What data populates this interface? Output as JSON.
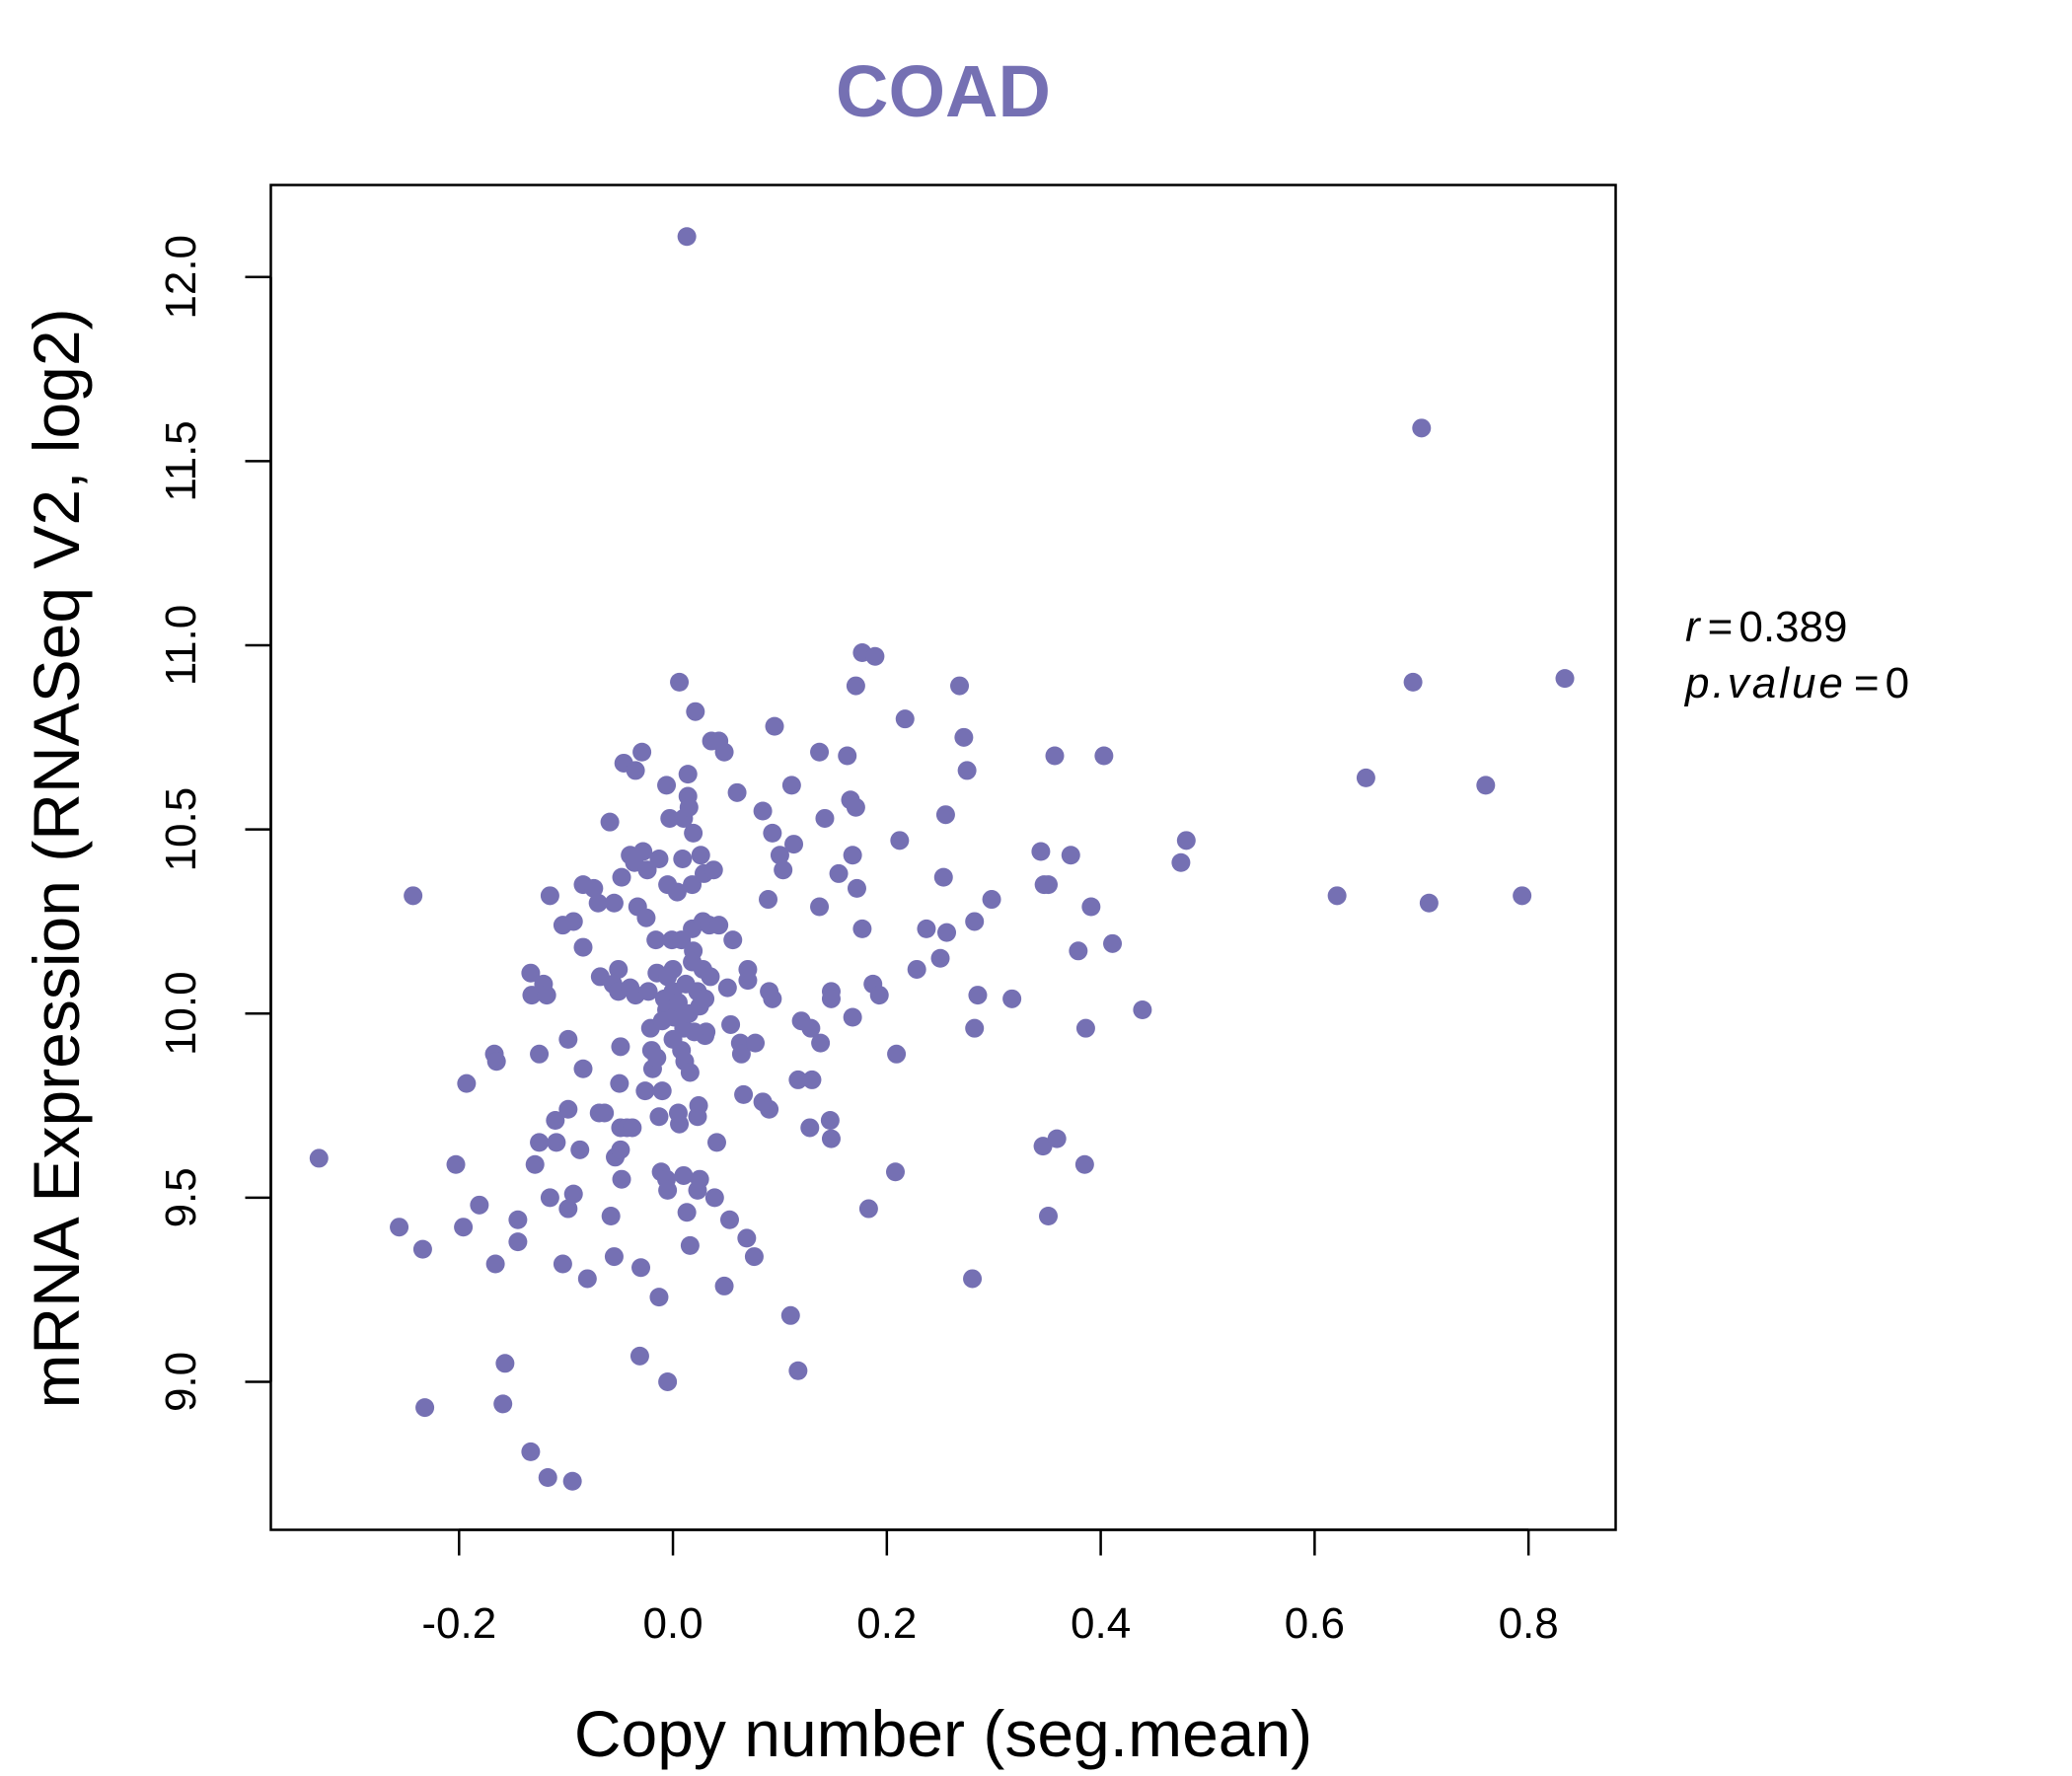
{
  "chart_data": {
    "type": "scatter",
    "title": "COAD",
    "xlabel": "Copy number (seg.mean)",
    "ylabel": "mRNA Expression (RNASeq V2, log2)",
    "xlim": [
      -0.376,
      0.8815
    ],
    "ylim": [
      8.598,
      12.25
    ],
    "xticks": [
      -0.2,
      0.0,
      0.2,
      0.4,
      0.6,
      0.8
    ],
    "xtick_labels": [
      "-0.2",
      "0.0",
      "0.2",
      "0.4",
      "0.6",
      "0.8"
    ],
    "yticks": [
      9.0,
      9.5,
      10.0,
      10.5,
      11.0,
      11.5,
      12.0
    ],
    "ytick_labels": [
      "9.0",
      "9.5",
      "10.0",
      "10.5",
      "11.0",
      "11.5",
      "12.0"
    ],
    "grid": false,
    "color": "#7570b3",
    "stats": {
      "r_label": "r",
      "r_value": "0.389",
      "p_label": "p.value",
      "p_value": "0",
      "eq": "="
    },
    "points": [
      [
        -0.331,
        9.607
      ],
      [
        -0.243,
        10.32
      ],
      [
        -0.232,
        8.93
      ],
      [
        -0.256,
        9.42
      ],
      [
        -0.234,
        9.36
      ],
      [
        -0.203,
        9.59
      ],
      [
        -0.193,
        9.81
      ],
      [
        -0.196,
        9.42
      ],
      [
        -0.181,
        9.48
      ],
      [
        -0.167,
        9.89
      ],
      [
        -0.165,
        9.87
      ],
      [
        -0.166,
        9.32
      ],
      [
        -0.157,
        9.05
      ],
      [
        -0.159,
        8.94
      ],
      [
        -0.145,
        9.44
      ],
      [
        -0.145,
        9.38
      ],
      [
        -0.133,
        10.11
      ],
      [
        -0.132,
        10.05
      ],
      [
        -0.121,
        10.08
      ],
      [
        -0.118,
        10.05
      ],
      [
        -0.125,
        9.89
      ],
      [
        -0.133,
        8.81
      ],
      [
        -0.117,
        8.74
      ],
      [
        -0.094,
        8.73
      ],
      [
        -0.125,
        9.65
      ],
      [
        -0.129,
        9.59
      ],
      [
        -0.115,
        10.32
      ],
      [
        -0.11,
        9.71
      ],
      [
        -0.109,
        9.65
      ],
      [
        -0.115,
        9.5
      ],
      [
        -0.103,
        9.32
      ],
      [
        -0.098,
        9.47
      ],
      [
        -0.093,
        9.51
      ],
      [
        -0.098,
        9.74
      ],
      [
        -0.098,
        9.93
      ],
      [
        -0.103,
        10.24
      ],
      [
        -0.093,
        10.25
      ],
      [
        -0.084,
        10.35
      ],
      [
        -0.074,
        10.34
      ],
      [
        -0.084,
        10.18
      ],
      [
        -0.084,
        9.85
      ],
      [
        -0.087,
        9.63
      ],
      [
        -0.08,
        9.28
      ],
      [
        -0.07,
        10.3
      ],
      [
        -0.068,
        10.1
      ],
      [
        -0.069,
        9.73
      ],
      [
        -0.064,
        9.73
      ],
      [
        -0.059,
        10.52
      ],
      [
        -0.055,
        10.3
      ],
      [
        -0.051,
        10.12
      ],
      [
        -0.056,
        10.08
      ],
      [
        -0.051,
        10.06
      ],
      [
        -0.058,
        9.45
      ],
      [
        -0.055,
        9.34
      ],
      [
        -0.054,
        9.61
      ],
      [
        -0.049,
        9.63
      ],
      [
        -0.049,
        9.69
      ],
      [
        -0.05,
        9.81
      ],
      [
        -0.049,
        9.91
      ],
      [
        -0.046,
        10.68
      ],
      [
        -0.035,
        10.66
      ],
      [
        -0.029,
        10.71
      ],
      [
        -0.048,
        10.37
      ],
      [
        -0.04,
        10.43
      ],
      [
        -0.036,
        10.41
      ],
      [
        -0.028,
        10.44
      ],
      [
        -0.024,
        10.39
      ],
      [
        -0.033,
        10.29
      ],
      [
        -0.025,
        10.26
      ],
      [
        -0.04,
        10.07
      ],
      [
        -0.035,
        10.05
      ],
      [
        -0.043,
        9.69
      ],
      [
        -0.048,
        9.55
      ],
      [
        -0.038,
        9.69
      ],
      [
        -0.031,
        9.07
      ],
      [
        -0.03,
        9.31
      ],
      [
        -0.026,
        9.79
      ],
      [
        -0.023,
        10.06
      ],
      [
        -0.021,
        9.96
      ],
      [
        -0.02,
        9.9
      ],
      [
        -0.019,
        9.85
      ],
      [
        -0.015,
        10.11
      ],
      [
        -0.016,
        10.2
      ],
      [
        -0.013,
        10.42
      ],
      [
        -0.013,
        9.23
      ],
      [
        -0.013,
        9.72
      ],
      [
        -0.011,
        9.57
      ],
      [
        -0.01,
        9.79
      ],
      [
        -0.008,
        10.04
      ],
      [
        -0.006,
        10.01
      ],
      [
        -0.006,
        10.62
      ],
      [
        -0.005,
        10.35
      ],
      [
        -0.005,
        9.0
      ],
      [
        -0.003,
        10.53
      ],
      [
        -0.001,
        10.2
      ],
      [
        0.0,
        10.12
      ],
      [
        0.001,
        9.99
      ],
      [
        0.0,
        10.06
      ],
      [
        0.004,
        10.33
      ],
      [
        0.006,
        10.9
      ],
      [
        0.006,
        9.7
      ],
      [
        0.005,
        9.73
      ],
      [
        -0.006,
        9.55
      ],
      [
        -0.005,
        9.52
      ],
      [
        0.008,
        10.2
      ],
      [
        0.009,
        10.42
      ],
      [
        0.01,
        10.53
      ],
      [
        0.01,
        9.96
      ],
      [
        0.011,
        9.87
      ],
      [
        0.013,
        12.11
      ],
      [
        0.013,
        9.46
      ],
      [
        0.01,
        9.56
      ],
      [
        0.014,
        10.65
      ],
      [
        0.014,
        10.59
      ],
      [
        0.015,
        10.56
      ],
      [
        0.016,
        9.84
      ],
      [
        0.016,
        9.37
      ],
      [
        0.018,
        10.35
      ],
      [
        0.018,
        10.23
      ],
      [
        0.019,
        10.49
      ],
      [
        0.019,
        10.17
      ],
      [
        0.021,
        10.82
      ],
      [
        0.023,
        9.52
      ],
      [
        0.023,
        9.72
      ],
      [
        0.023,
        10.06
      ],
      [
        0.024,
        9.75
      ],
      [
        0.025,
        9.55
      ],
      [
        0.026,
        10.43
      ],
      [
        0.028,
        10.12
      ],
      [
        0.029,
        10.38
      ],
      [
        0.028,
        10.25
      ],
      [
        0.03,
        9.94
      ],
      [
        0.031,
        9.95
      ],
      [
        0.034,
        10.24
      ],
      [
        0.035,
        10.1
      ],
      [
        0.036,
        10.74
      ],
      [
        0.038,
        10.39
      ],
      [
        0.039,
        9.5
      ],
      [
        0.041,
        9.65
      ],
      [
        0.043,
        10.24
      ],
      [
        0.043,
        10.74
      ],
      [
        0.048,
        10.71
      ],
      [
        0.048,
        9.26
      ],
      [
        0.051,
        10.07
      ],
      [
        0.053,
        9.44
      ],
      [
        0.054,
        9.97
      ],
      [
        0.056,
        10.2
      ],
      [
        0.06,
        10.6
      ],
      [
        0.063,
        9.92
      ],
      [
        0.064,
        9.89
      ],
      [
        0.066,
        9.78
      ],
      [
        0.069,
        9.39
      ],
      [
        0.07,
        10.12
      ],
      [
        0.07,
        10.09
      ],
      [
        0.076,
        9.34
      ],
      [
        0.077,
        9.92
      ],
      [
        0.084,
        10.55
      ],
      [
        0.084,
        9.76
      ],
      [
        0.09,
        9.74
      ],
      [
        0.089,
        10.31
      ],
      [
        0.09,
        10.06
      ],
      [
        0.093,
        10.04
      ],
      [
        0.093,
        10.49
      ],
      [
        0.095,
        10.78
      ],
      [
        0.1,
        10.43
      ],
      [
        0.103,
        10.39
      ],
      [
        0.11,
        9.18
      ],
      [
        0.111,
        10.62
      ],
      [
        0.113,
        10.46
      ],
      [
        0.117,
        9.82
      ],
      [
        0.117,
        9.03
      ],
      [
        0.12,
        9.98
      ],
      [
        0.128,
        9.69
      ],
      [
        0.129,
        9.96
      ],
      [
        0.13,
        9.82
      ],
      [
        0.137,
        10.71
      ],
      [
        0.137,
        10.29
      ],
      [
        0.138,
        9.92
      ],
      [
        0.142,
        10.53
      ],
      [
        0.147,
        9.71
      ],
      [
        0.148,
        9.66
      ],
      [
        0.148,
        10.06
      ],
      [
        0.148,
        10.04
      ],
      [
        0.155,
        10.38
      ],
      [
        0.163,
        10.7
      ],
      [
        0.166,
        10.58
      ],
      [
        0.168,
        9.99
      ],
      [
        0.168,
        10.43
      ],
      [
        0.171,
        10.89
      ],
      [
        0.171,
        10.56
      ],
      [
        0.172,
        10.34
      ],
      [
        0.177,
        10.98
      ],
      [
        0.177,
        10.23
      ],
      [
        0.183,
        9.47
      ],
      [
        0.187,
        10.08
      ],
      [
        0.189,
        10.97
      ],
      [
        0.193,
        10.05
      ],
      [
        0.208,
        9.57
      ],
      [
        0.209,
        9.89
      ],
      [
        0.212,
        10.47
      ],
      [
        0.217,
        10.8
      ],
      [
        0.228,
        10.12
      ],
      [
        0.237,
        10.23
      ],
      [
        0.25,
        10.15
      ],
      [
        0.253,
        10.37
      ],
      [
        0.255,
        10.54
      ],
      [
        0.256,
        10.22
      ],
      [
        0.268,
        10.89
      ],
      [
        0.272,
        10.75
      ],
      [
        0.275,
        10.66
      ],
      [
        0.28,
        9.28
      ],
      [
        0.282,
        10.25
      ],
      [
        0.282,
        9.96
      ],
      [
        0.285,
        10.05
      ],
      [
        0.298,
        10.31
      ],
      [
        0.317,
        10.04
      ],
      [
        0.344,
        10.44
      ],
      [
        0.347,
        10.35
      ],
      [
        0.351,
        10.35
      ],
      [
        0.346,
        9.64
      ],
      [
        0.351,
        9.45
      ],
      [
        0.357,
        10.7
      ],
      [
        0.359,
        9.66
      ],
      [
        0.372,
        10.43
      ],
      [
        0.379,
        10.17
      ],
      [
        0.385,
        9.59
      ],
      [
        0.386,
        9.96
      ],
      [
        0.391,
        10.29
      ],
      [
        0.403,
        10.7
      ],
      [
        0.411,
        10.19
      ],
      [
        0.439,
        10.01
      ],
      [
        0.475,
        10.41
      ],
      [
        0.48,
        10.47
      ],
      [
        0.621,
        10.32
      ],
      [
        0.648,
        10.64
      ],
      [
        0.692,
        10.9
      ],
      [
        0.7,
        11.59
      ],
      [
        0.707,
        10.3
      ],
      [
        0.76,
        10.62
      ],
      [
        0.794,
        10.32
      ],
      [
        0.834,
        10.91
      ],
      [
        0.005,
        10.03
      ],
      [
        0.015,
        10.0
      ],
      [
        -0.01,
        9.98
      ],
      [
        0.02,
        9.95
      ],
      [
        0.0,
        9.93
      ],
      [
        0.012,
        10.08
      ],
      [
        -0.005,
        10.1
      ],
      [
        0.025,
        10.02
      ],
      [
        0.008,
        9.9
      ],
      [
        -0.015,
        9.88
      ],
      [
        0.018,
        10.14
      ],
      [
        0.03,
        10.04
      ]
    ]
  }
}
